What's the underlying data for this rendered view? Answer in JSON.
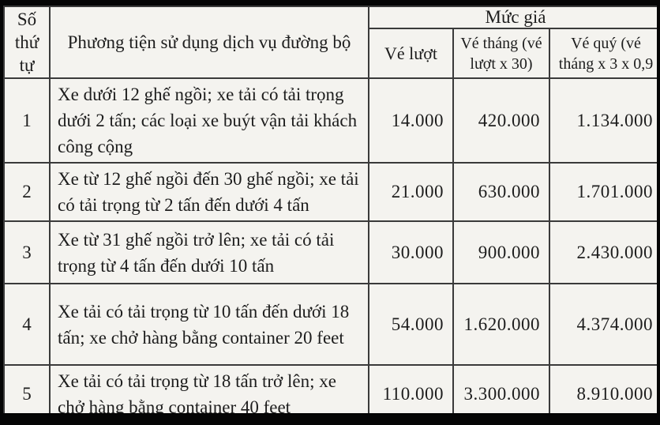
{
  "document": {
    "type": "scanned-price-table",
    "colors": {
      "frame": "#050505",
      "paper": "#f4f3ef",
      "ink": "#1d1d1d",
      "grid_line": "#3a3a3a"
    },
    "table": {
      "header": {
        "col_no": "Số thứ tự",
        "col_vehicle": "Phương tiện sử dụng dịch vụ đường bộ",
        "price_group": "Mức giá",
        "col_single": "Vé lượt",
        "col_monthly": "Vé tháng (vé lượt x 30)",
        "col_quarterly": "Vé quý (vé tháng x 3 x 0,9"
      },
      "rows": [
        {
          "no": "1",
          "vehicle": "Xe dưới 12 ghế ngồi; xe tải có tải trọng dưới 2 tấn; các loại xe buýt vận tải khách công cộng",
          "single": "14.000",
          "monthly": "420.000",
          "quarterly": "1.134.000"
        },
        {
          "no": "2",
          "vehicle": "Xe từ 12 ghế ngồi đến 30 ghế ngồi; xe tải có tải trọng từ 2 tấn đến dưới 4 tấn",
          "single": "21.000",
          "monthly": "630.000",
          "quarterly": "1.701.000"
        },
        {
          "no": "3",
          "vehicle": "Xe từ 31 ghế ngồi trở lên; xe tải có tải trọng từ 4 tấn đến dưới 10 tấn",
          "single": "30.000",
          "monthly": "900.000",
          "quarterly": "2.430.000"
        },
        {
          "no": "4",
          "vehicle": "Xe tải có tải trọng từ 10 tấn đến dưới 18 tấn; xe chở hàng bằng container 20 feet",
          "single": "54.000",
          "monthly": "1.620.000",
          "quarterly": "4.374.000"
        },
        {
          "no": "5",
          "vehicle": "Xe tải có tải trọng từ 18 tấn trở lên; xe chở hàng bằng container 40 feet",
          "single": "110.000",
          "monthly": "3.300.000",
          "quarterly": "8.910.000"
        }
      ]
    }
  }
}
